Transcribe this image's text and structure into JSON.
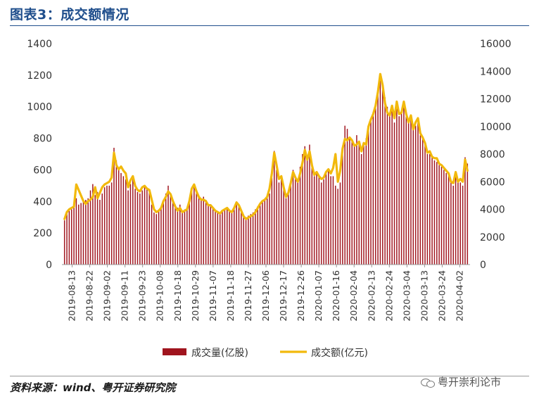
{
  "header": {
    "title": "图表3：成交额情况"
  },
  "footer": {
    "source": "资料来源：wind、粤开证券研究院",
    "watermark": "粤开崇利论市"
  },
  "colors": {
    "volume": "#a0141e",
    "amount": "#f2b90c",
    "title": "#1f4e8c"
  },
  "chart_data": {
    "type": "bar+line",
    "x_tick_labels": [
      "2019-08-13",
      "2019-08-22",
      "2019-09-02",
      "2019-09-11",
      "2019-09-23",
      "2019-10-08",
      "2019-10-18",
      "2019-10-29",
      "2019-11-07",
      "2019-11-18",
      "2019-11-27",
      "2019-12-06",
      "2019-12-17",
      "2019-12-26",
      "2020-01-07",
      "2020-01-16",
      "2020-02-04",
      "2020-02-13",
      "2020-02-24",
      "2020-03-04",
      "2020-03-13",
      "2020-03-24",
      "2020-04-02"
    ],
    "left_axis": {
      "ylim": [
        0,
        1400
      ],
      "ticks": [
        0,
        200,
        400,
        600,
        800,
        1000,
        1200,
        1400
      ]
    },
    "right_axis": {
      "ylim": [
        0,
        16000
      ],
      "ticks": [
        0,
        2000,
        4000,
        6000,
        8000,
        10000,
        12000,
        14000,
        16000
      ]
    },
    "series": [
      {
        "name": "成交量(亿股)",
        "type": "bar",
        "axis": "left",
        "values": [
          280,
          330,
          340,
          350,
          360,
          420,
          380,
          390,
          400,
          410,
          420,
          470,
          510,
          440,
          460,
          410,
          450,
          490,
          500,
          500,
          520,
          740,
          660,
          600,
          580,
          560,
          540,
          470,
          510,
          560,
          480,
          460,
          450,
          470,
          490,
          480,
          460,
          380,
          330,
          320,
          340,
          360,
          400,
          450,
          500,
          440,
          400,
          380,
          360,
          380,
          340,
          350,
          360,
          420,
          480,
          500,
          460,
          430,
          420,
          430,
          410,
          380,
          380,
          360,
          340,
          330,
          320,
          340,
          350,
          360,
          340,
          330,
          360,
          400,
          380,
          340,
          310,
          300,
          310,
          320,
          330,
          350,
          370,
          390,
          400,
          410,
          420,
          450,
          550,
          720,
          600,
          520,
          560,
          480,
          420,
          460,
          520,
          600,
          560,
          540,
          620,
          700,
          750,
          680,
          760,
          620,
          560,
          580,
          560,
          520,
          540,
          580,
          600,
          560,
          560,
          500,
          480,
          520,
          700,
          880,
          860,
          800,
          780,
          760,
          820,
          780,
          700,
          760,
          800,
          880,
          920,
          950,
          1000,
          1080,
          1200,
          1140,
          1060,
          1000,
          940,
          980,
          900,
          1000,
          940,
          960,
          1000,
          940,
          900,
          920,
          860,
          880,
          900,
          820,
          800,
          760,
          700,
          700,
          680,
          660,
          650,
          630,
          620,
          600,
          580,
          560,
          520,
          500,
          560,
          520,
          520,
          500,
          680,
          640
        ]
      },
      {
        "name": "成交额(亿元)",
        "type": "line",
        "axis": "right",
        "values": [
          3300,
          3800,
          4000,
          4100,
          4200,
          5800,
          5400,
          5000,
          4600,
          4400,
          4600,
          4700,
          4900,
          5600,
          4800,
          5200,
          5600,
          5800,
          5900,
          6000,
          6300,
          8100,
          7200,
          6900,
          7100,
          6800,
          6600,
          5600,
          6100,
          6400,
          5700,
          5400,
          5300,
          5600,
          5700,
          5500,
          5400,
          4700,
          4000,
          3800,
          3900,
          4100,
          4600,
          4900,
          5300,
          5100,
          4600,
          4200,
          3900,
          4100,
          3800,
          3900,
          4000,
          4600,
          5500,
          5800,
          5300,
          4900,
          4700,
          4700,
          4600,
          4300,
          4300,
          4100,
          3900,
          3800,
          3700,
          3900,
          4000,
          4100,
          3900,
          3800,
          4100,
          4500,
          4300,
          3900,
          3500,
          3300,
          3400,
          3500,
          3600,
          3800,
          4100,
          4400,
          4600,
          4700,
          4900,
          5500,
          6600,
          8100,
          7200,
          6200,
          6400,
          5600,
          4900,
          5200,
          5900,
          6700,
          6300,
          6000,
          6600,
          7400,
          8300,
          7600,
          8200,
          7200,
          6500,
          6700,
          6400,
          6200,
          6300,
          6700,
          6900,
          6600,
          7000,
          8000,
          6000,
          6800,
          8400,
          9100,
          9000,
          9200,
          9000,
          8600,
          8700,
          8900,
          8200,
          8800,
          8700,
          10000,
          10500,
          10900,
          11500,
          12500,
          13800,
          13000,
          11700,
          11000,
          10800,
          11500,
          10600,
          11800,
          10900,
          11000,
          11800,
          10900,
          10300,
          10800,
          9800,
          10300,
          10600,
          9500,
          9200,
          8800,
          8100,
          8200,
          7800,
          7700,
          7700,
          7300,
          7200,
          7000,
          6800,
          6600,
          6000,
          5900,
          6700,
          6000,
          6200,
          6000,
          7600,
          6800
        ]
      }
    ],
    "legend": [
      "成交量(亿股)",
      "成交额(亿元)"
    ],
    "legend_position": "bottom",
    "grid": false
  }
}
